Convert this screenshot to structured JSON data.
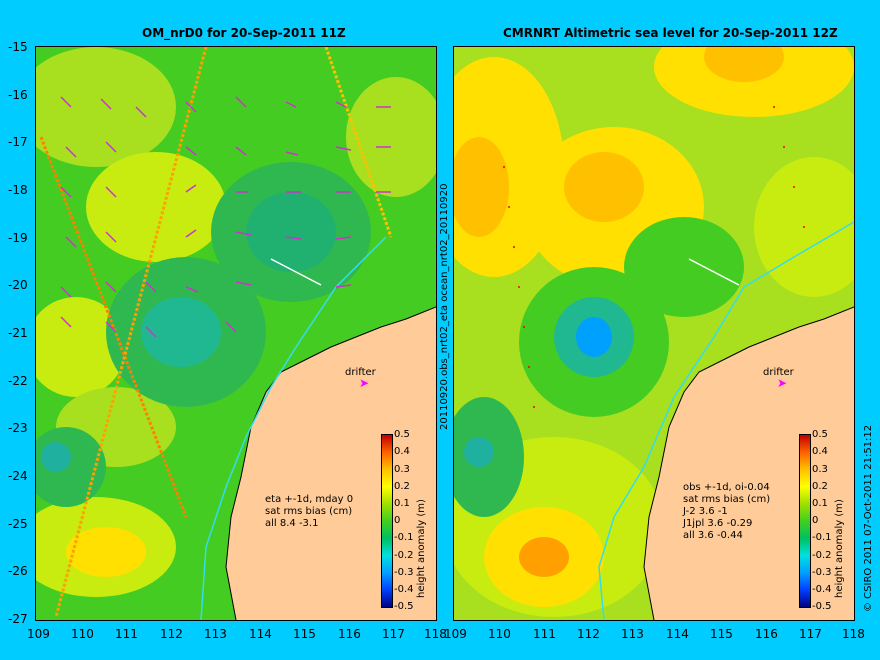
{
  "left_panel": {
    "title": "OM_nrD0 for 20-Sep-2011 11Z",
    "stats": [
      "eta +-1d, mday 0",
      "sat rms bias (cm)",
      "all 8.4 -3.1"
    ],
    "drifter_label": "drifter"
  },
  "right_panel": {
    "title": "CMRNRT Altimetric sea level  for 20-Sep-2011 12Z",
    "stats": [
      "obs +-1d, oi-0.04",
      "sat rms bias (cm)",
      "J-2   3.6 -1",
      "J1jpl 3.6 -0.29",
      "all 3.6 -0.44"
    ],
    "drifter_label": "drifter"
  },
  "side_label": "20110920.obs_nrt02_eta      ocean_nrt02_20110920",
  "credit": "© CSIRO 2011  07-Oct-2011 21:51:12",
  "colorbar": {
    "label": "height anomaly (m)",
    "ticks": [
      "0.5",
      "0.4",
      "0.3",
      "0.2",
      "0.1",
      "0",
      "-0.1",
      "-0.2",
      "-0.3",
      "-0.4",
      "-0.5"
    ],
    "colors": [
      "#000080",
      "#0040ff",
      "#00a0ff",
      "#00e0e0",
      "#00c060",
      "#40d020",
      "#a0e000",
      "#ffff00",
      "#ffc000",
      "#ff6000",
      "#c00000"
    ]
  },
  "axes": {
    "lat_ticks": [
      "-15",
      "-16",
      "-17",
      "-18",
      "-19",
      "-20",
      "-21",
      "-22",
      "-23",
      "-24",
      "-25",
      "-26",
      "-27"
    ],
    "lon_ticks": [
      "109",
      "110",
      "111",
      "112",
      "113",
      "114",
      "115",
      "116",
      "117",
      "118"
    ]
  },
  "colors": {
    "background": "#00ccff",
    "land": "#ffcc99",
    "vector": "#cc33cc"
  }
}
